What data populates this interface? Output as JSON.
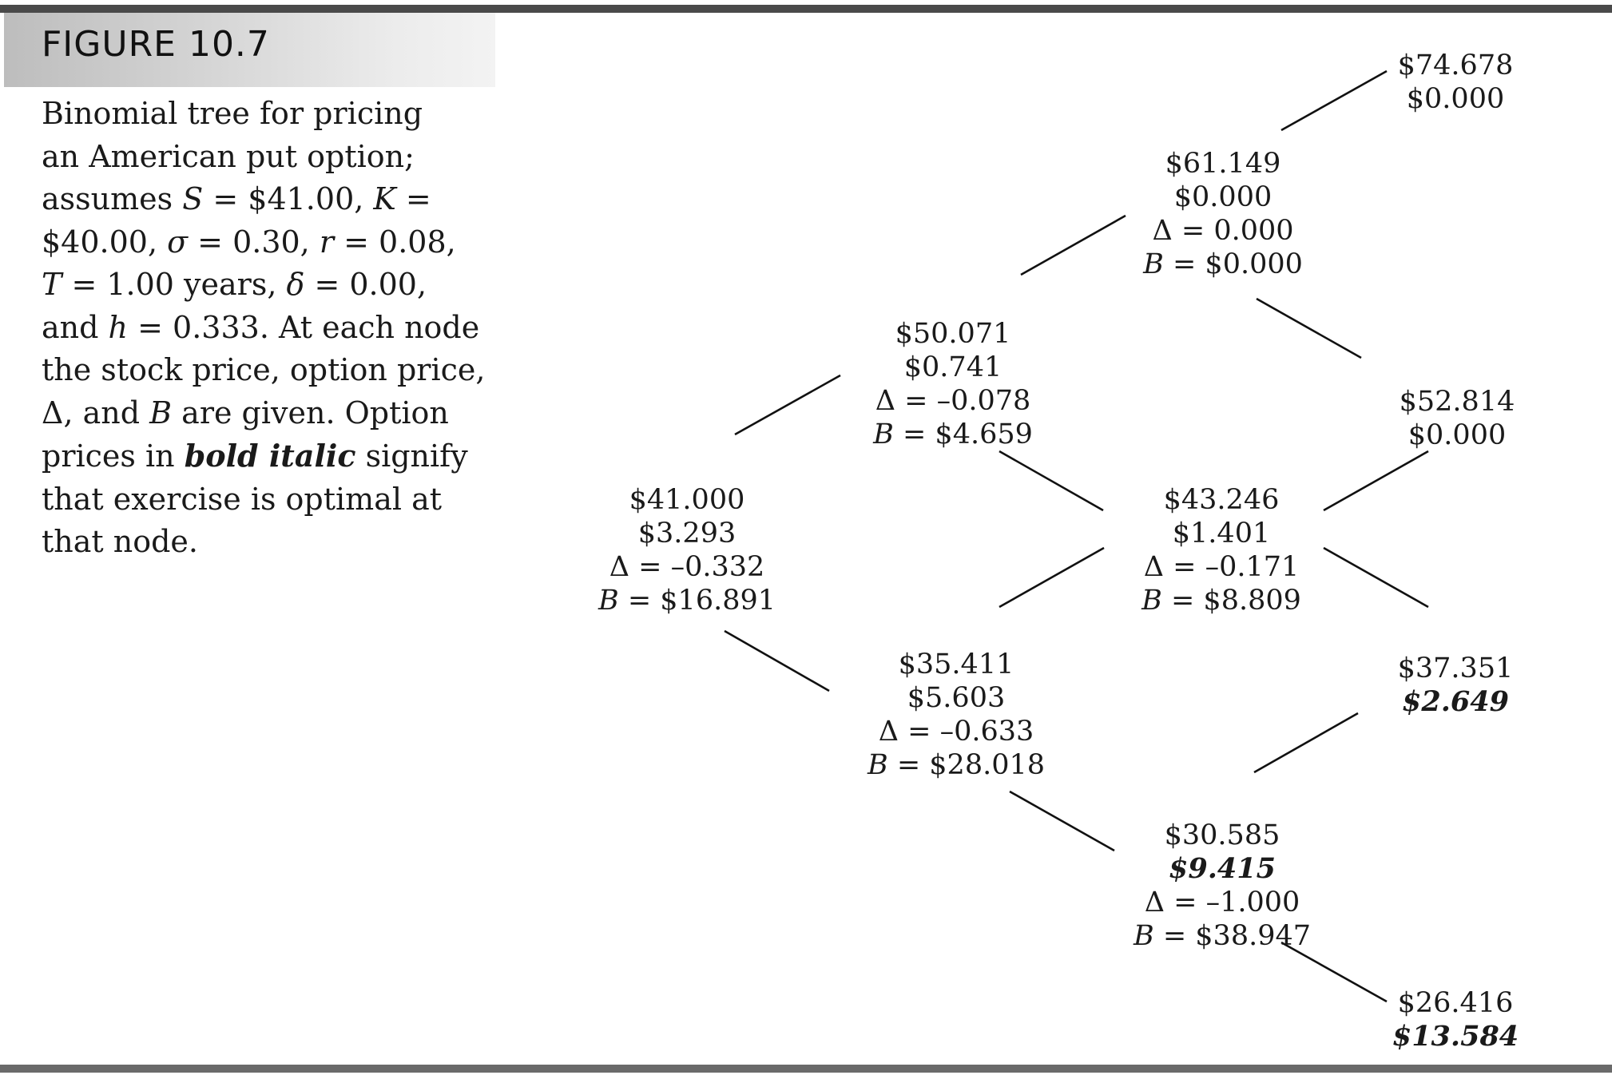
{
  "figure_label": "FIGURE 10.7",
  "caption_lines": [
    [
      {
        "t": "Binomial tree for pricing"
      }
    ],
    [
      {
        "t": "an American put option;"
      }
    ],
    [
      {
        "t": "assumes "
      },
      {
        "t": "S",
        "s": "it"
      },
      {
        "t": " = $41.00, "
      },
      {
        "t": "K",
        "s": "it"
      },
      {
        "t": " ="
      }
    ],
    [
      {
        "t": "$40.00, "
      },
      {
        "t": "σ",
        "s": "it"
      },
      {
        "t": " = 0.30, "
      },
      {
        "t": "r",
        "s": "it"
      },
      {
        "t": " = 0.08,"
      }
    ],
    [
      {
        "t": "T",
        "s": "it"
      },
      {
        "t": " = 1.00 years, "
      },
      {
        "t": "δ",
        "s": "it"
      },
      {
        "t": " = 0.00,"
      }
    ],
    [
      {
        "t": "and "
      },
      {
        "t": "h",
        "s": "it"
      },
      {
        "t": " = 0.333. At each node"
      }
    ],
    [
      {
        "t": "the stock price, option price,"
      }
    ],
    [
      {
        "t": "Δ, and "
      },
      {
        "t": "B",
        "s": "it"
      },
      {
        "t": " are given. Option"
      }
    ],
    [
      {
        "t": "prices in "
      },
      {
        "t": "bold italic",
        "s": "bi"
      },
      {
        "t": " signify"
      }
    ],
    [
      {
        "t": "that exercise is optimal at"
      }
    ],
    [
      {
        "t": "that node."
      }
    ]
  ],
  "tree": {
    "nodes": [
      {
        "id": "n0_0",
        "stock": "$41.000",
        "option": "$3.293",
        "exercise": false,
        "delta": "Δ = –0.332",
        "b_prefix": "B",
        "b_rest": " = $16.891"
      },
      {
        "id": "n1_u",
        "stock": "$50.071",
        "option": "$0.741",
        "exercise": false,
        "delta": "Δ = –0.078",
        "b_prefix": "B",
        "b_rest": " = $4.659"
      },
      {
        "id": "n1_d",
        "stock": "$35.411",
        "option": "$5.603",
        "exercise": false,
        "delta": "Δ = –0.633",
        "b_prefix": "B",
        "b_rest": " = $28.018"
      },
      {
        "id": "n2_uu",
        "stock": "$61.149",
        "option": "$0.000",
        "exercise": false,
        "delta": "Δ = 0.000",
        "b_prefix": "B",
        "b_rest": " = $0.000"
      },
      {
        "id": "n2_ud",
        "stock": "$43.246",
        "option": "$1.401",
        "exercise": false,
        "delta": "Δ = –0.171",
        "b_prefix": "B",
        "b_rest": " = $8.809"
      },
      {
        "id": "n2_dd",
        "stock": "$30.585",
        "option": "$9.415",
        "exercise": true,
        "delta": "Δ = –1.000",
        "b_prefix": "B",
        "b_rest": " = $38.947"
      },
      {
        "id": "n3_uuu",
        "stock": "$74.678",
        "option": "$0.000",
        "exercise": false
      },
      {
        "id": "n3_uud",
        "stock": "$52.814",
        "option": "$0.000",
        "exercise": false
      },
      {
        "id": "n3_udd",
        "stock": "$37.351",
        "option": "$2.649",
        "exercise": true
      },
      {
        "id": "n3_ddd",
        "stock": "$26.416",
        "option": "$13.584",
        "exercise": true
      }
    ]
  }
}
